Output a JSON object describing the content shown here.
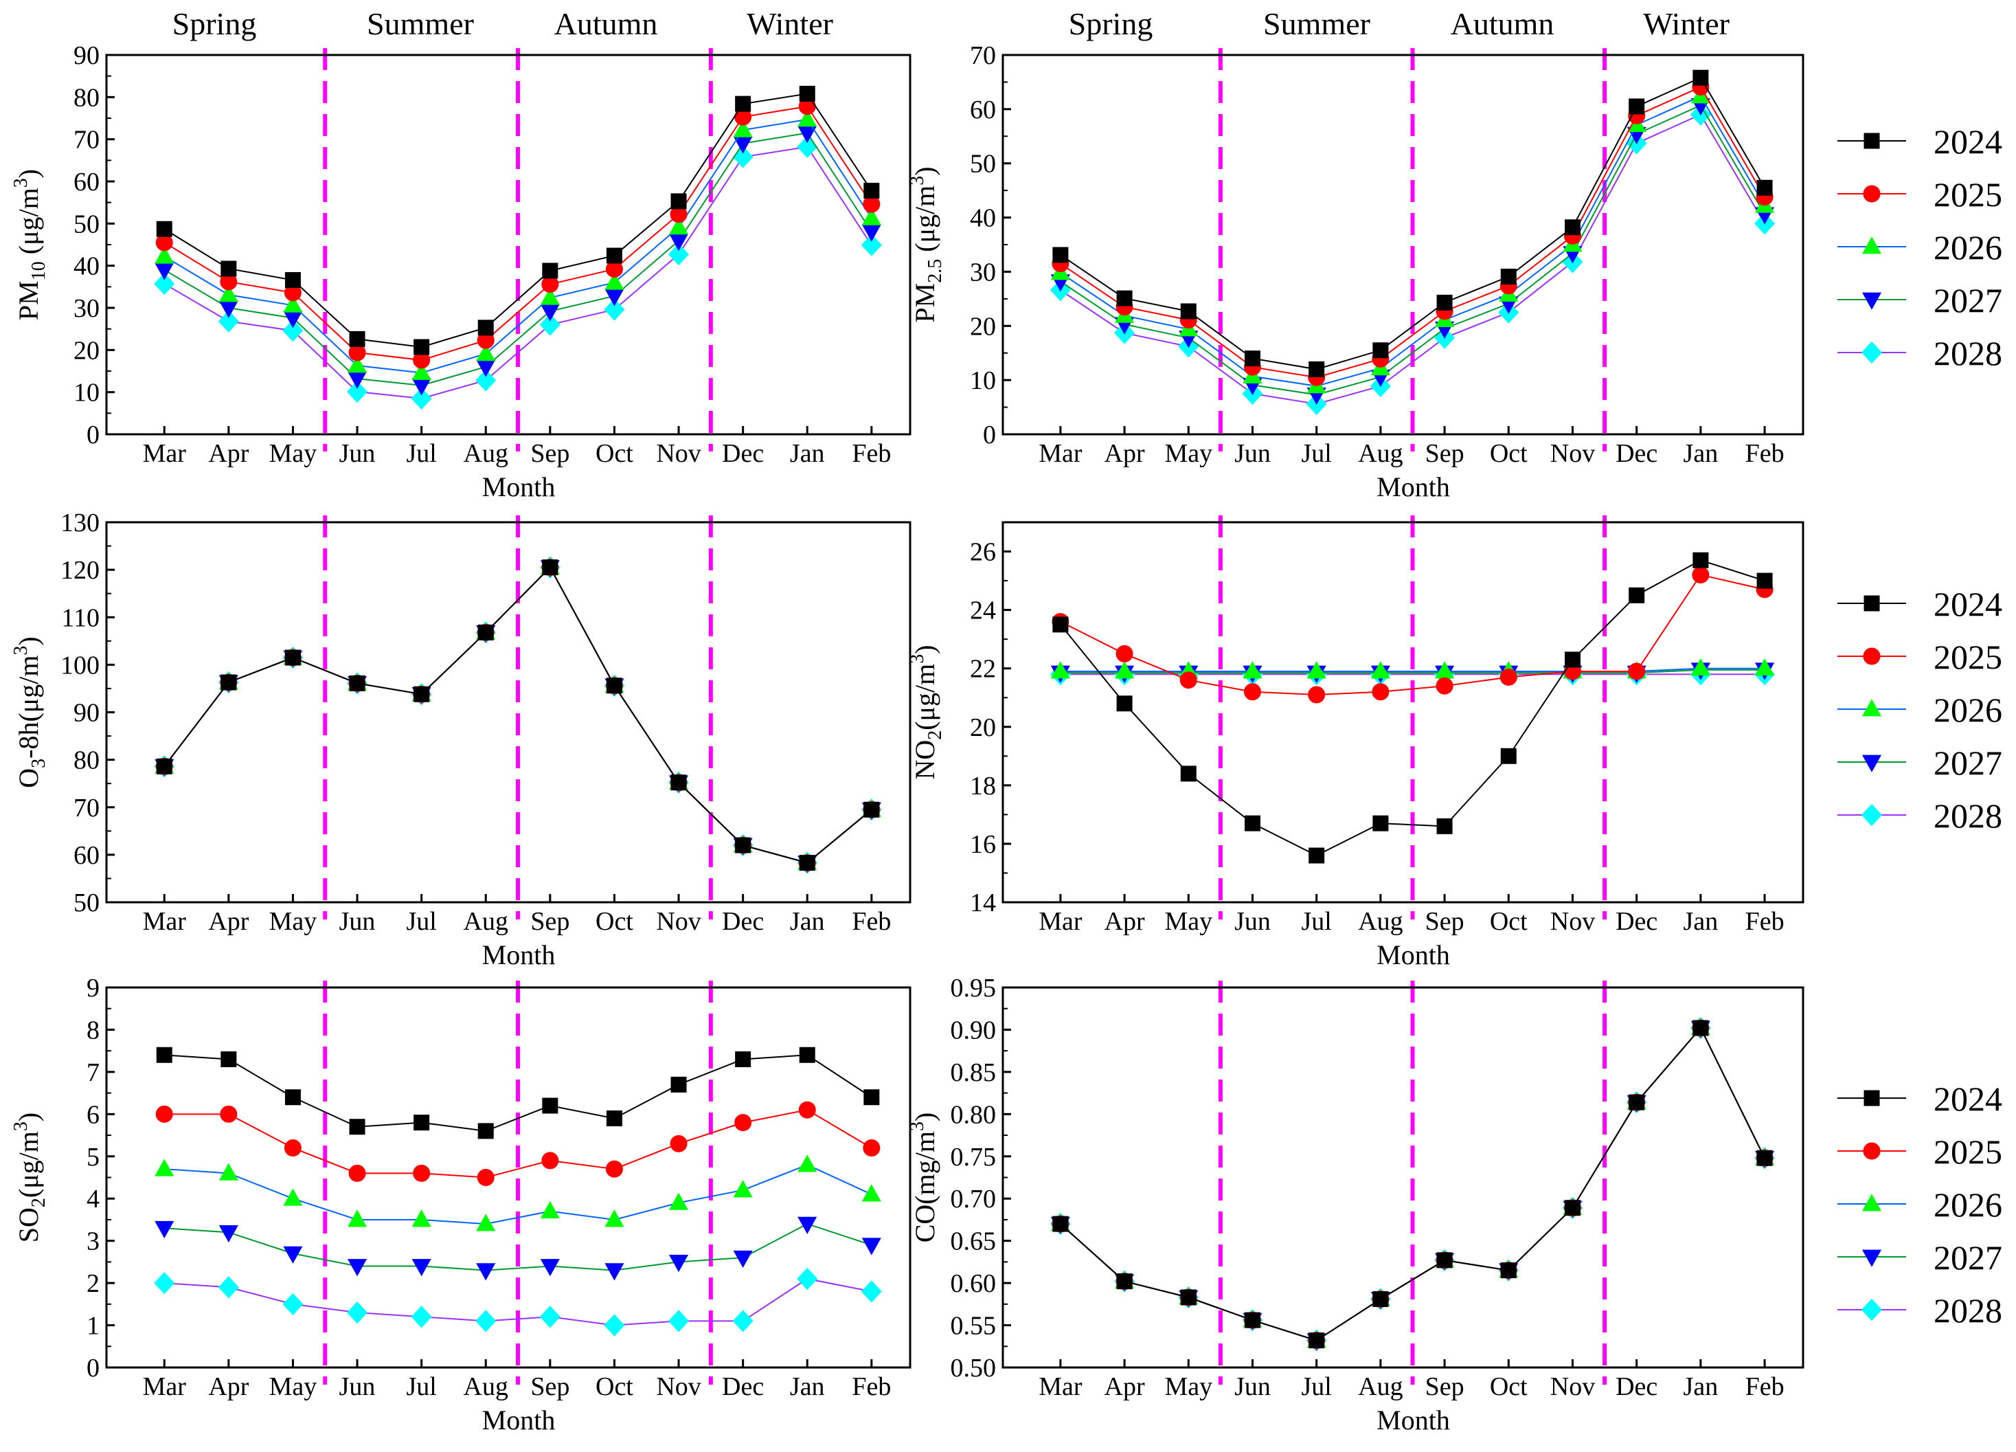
{
  "seasons": [
    "Spring",
    "Summer",
    "Autumn",
    "Winter"
  ],
  "legend": [
    "2024",
    "2025",
    "2026",
    "2027",
    "2028"
  ],
  "series_style": [
    {
      "name": "2024",
      "marker": "square",
      "fill": "#000000",
      "line": "#000000"
    },
    {
      "name": "2025",
      "marker": "circle",
      "fill": "#ff0000",
      "line": "#ff0000"
    },
    {
      "name": "2026",
      "marker": "triangle-up",
      "fill": "#00ff00",
      "line": "#0066ff"
    },
    {
      "name": "2027",
      "marker": "triangle-down",
      "fill": "#0000ff",
      "line": "#009933"
    },
    {
      "name": "2028",
      "marker": "diamond",
      "fill": "#00ffff",
      "line": "#9933ff"
    }
  ],
  "season_divider_color": "#ff00ff",
  "chart_data": [
    {
      "id": "pm10",
      "type": "line",
      "ylabel": "PM10 (μg/m3)",
      "ylabel_parts": [
        "PM",
        "10",
        " (μg/m",
        "3",
        ")"
      ],
      "xlabel": "Month",
      "categories": [
        "Mar",
        "Apr",
        "May",
        "Jun",
        "Jul",
        "Aug",
        "Sep",
        "Oct",
        "Nov",
        "Dec",
        "Jan",
        "Feb"
      ],
      "ylim": [
        0,
        90
      ],
      "yticks": [
        0,
        10,
        20,
        30,
        40,
        50,
        60,
        70,
        80,
        90
      ],
      "ydecimals": 0,
      "season_dividers_after": [
        "May",
        "Aug",
        "Nov"
      ],
      "series": [
        {
          "name": "2024",
          "values": [
            48.7,
            39.3,
            36.6,
            22.6,
            20.7,
            25.3,
            38.8,
            42.4,
            55.3,
            78.4,
            80.8,
            57.8
          ]
        },
        {
          "name": "2025",
          "values": [
            45.5,
            36.2,
            33.6,
            19.4,
            17.6,
            22.3,
            35.6,
            39.2,
            52.2,
            75.3,
            77.8,
            54.6
          ]
        },
        {
          "name": "2026",
          "values": [
            42.2,
            33.1,
            30.6,
            16.3,
            14.6,
            19.1,
            32.4,
            36.0,
            49.1,
            72.2,
            74.7,
            51.3
          ]
        },
        {
          "name": "2027",
          "values": [
            39.0,
            30.0,
            27.6,
            13.2,
            11.6,
            16.0,
            29.2,
            32.8,
            45.9,
            69.0,
            71.5,
            48.1
          ]
        },
        {
          "name": "2028",
          "values": [
            35.7,
            26.8,
            24.6,
            10.1,
            8.5,
            12.8,
            26.0,
            29.6,
            42.7,
            65.8,
            68.2,
            44.9
          ]
        }
      ]
    },
    {
      "id": "pm25",
      "type": "line",
      "ylabel": "PM2.5 (μg/m3)",
      "ylabel_parts": [
        "PM",
        "2.5",
        " (μg/m",
        "3",
        ")"
      ],
      "xlabel": "Month",
      "categories": [
        "Mar",
        "Apr",
        "May",
        "Jun",
        "Jul",
        "Aug",
        "Sep",
        "Oct",
        "Nov",
        "Dec",
        "Jan",
        "Feb"
      ],
      "ylim": [
        0,
        70
      ],
      "yticks": [
        0,
        10,
        20,
        30,
        40,
        50,
        60,
        70
      ],
      "ydecimals": 0,
      "season_dividers_after": [
        "May",
        "Aug",
        "Nov"
      ],
      "series": [
        {
          "name": "2024",
          "values": [
            33.1,
            25.1,
            22.7,
            14.0,
            12.0,
            15.5,
            24.3,
            29.1,
            38.2,
            60.5,
            65.8,
            45.5
          ]
        },
        {
          "name": "2025",
          "values": [
            31.5,
            23.5,
            21.1,
            12.4,
            10.5,
            13.9,
            22.7,
            27.4,
            36.6,
            58.8,
            64.1,
            43.8
          ]
        },
        {
          "name": "2026",
          "values": [
            29.8,
            21.9,
            19.4,
            10.7,
            8.9,
            12.2,
            21.1,
            25.8,
            35.0,
            57.1,
            62.4,
            42.2
          ]
        },
        {
          "name": "2027",
          "values": [
            28.2,
            20.3,
            17.8,
            9.1,
            7.3,
            10.6,
            19.5,
            24.1,
            33.4,
            55.4,
            60.7,
            40.6
          ]
        },
        {
          "name": "2028",
          "values": [
            26.6,
            18.7,
            16.2,
            7.5,
            5.6,
            8.9,
            17.8,
            22.5,
            31.8,
            53.7,
            59.0,
            38.9
          ]
        }
      ]
    },
    {
      "id": "o3",
      "type": "line",
      "ylabel": "O3-8h(μg/m3)",
      "ylabel_parts": [
        "O",
        "3",
        "-8h(μg/m",
        "3",
        ")"
      ],
      "xlabel": "Month",
      "categories": [
        "Mar",
        "Apr",
        "May",
        "Jun",
        "Jul",
        "Aug",
        "Sep",
        "Oct",
        "Nov",
        "Dec",
        "Jan",
        "Feb"
      ],
      "ylim": [
        50,
        130
      ],
      "yticks": [
        50,
        60,
        70,
        80,
        90,
        100,
        110,
        120,
        130
      ],
      "ydecimals": 0,
      "season_dividers_after": [
        "May",
        "Aug",
        "Nov"
      ],
      "series": [
        {
          "name": "2024",
          "values": [
            78.6,
            96.3,
            101.5,
            96.1,
            93.8,
            106.8,
            120.5,
            95.6,
            75.2,
            62.0,
            58.3,
            69.5
          ]
        },
        {
          "name": "2025",
          "values": [
            78.6,
            96.3,
            101.5,
            96.1,
            93.8,
            106.8,
            120.5,
            95.6,
            75.2,
            62.0,
            58.3,
            69.5
          ]
        },
        {
          "name": "2026",
          "values": [
            78.6,
            96.3,
            101.5,
            96.1,
            93.8,
            106.8,
            120.5,
            95.6,
            75.2,
            62.0,
            58.3,
            69.5
          ]
        },
        {
          "name": "2027",
          "values": [
            78.6,
            96.3,
            101.5,
            96.1,
            93.8,
            106.8,
            120.5,
            95.6,
            75.2,
            62.0,
            58.3,
            69.5
          ]
        },
        {
          "name": "2028",
          "values": [
            78.6,
            96.3,
            101.5,
            96.1,
            93.8,
            106.8,
            120.5,
            95.6,
            75.2,
            62.0,
            58.3,
            69.5
          ]
        }
      ]
    },
    {
      "id": "no2",
      "type": "line",
      "ylabel": "NO2(μg/m3)",
      "ylabel_parts": [
        "NO",
        "2",
        "(μg/m",
        "3",
        ")"
      ],
      "xlabel": "Month",
      "categories": [
        "Mar",
        "Apr",
        "May",
        "Jun",
        "Jul",
        "Aug",
        "Sep",
        "Oct",
        "Nov",
        "Dec",
        "Jan",
        "Feb"
      ],
      "ylim": [
        14,
        27
      ],
      "yticks": [
        14,
        16,
        18,
        20,
        22,
        24,
        26
      ],
      "ydecimals": 0,
      "season_dividers_after": [
        "May",
        "Aug",
        "Nov"
      ],
      "series": [
        {
          "name": "2024",
          "values": [
            23.5,
            20.8,
            18.4,
            16.7,
            15.6,
            16.7,
            16.6,
            19.0,
            22.3,
            24.5,
            25.7,
            25.0
          ]
        },
        {
          "name": "2025",
          "values": [
            23.6,
            22.5,
            21.6,
            21.2,
            21.1,
            21.2,
            21.4,
            21.7,
            21.9,
            21.9,
            25.2,
            24.7
          ]
        },
        {
          "name": "2026",
          "values": [
            21.9,
            21.9,
            21.9,
            21.9,
            21.9,
            21.9,
            21.9,
            21.9,
            21.9,
            21.9,
            22.0,
            22.0
          ]
        },
        {
          "name": "2027",
          "values": [
            21.85,
            21.85,
            21.85,
            21.85,
            21.85,
            21.85,
            21.85,
            21.85,
            21.85,
            21.85,
            21.95,
            21.95
          ]
        },
        {
          "name": "2028",
          "values": [
            21.8,
            21.8,
            21.8,
            21.8,
            21.8,
            21.8,
            21.8,
            21.8,
            21.8,
            21.8,
            21.8,
            21.8
          ]
        }
      ]
    },
    {
      "id": "so2",
      "type": "line",
      "ylabel": "SO2(μg/m3)",
      "ylabel_parts": [
        "SO",
        "2",
        "(μg/m",
        "3",
        ")"
      ],
      "xlabel": "Month",
      "categories": [
        "Mar",
        "Apr",
        "May",
        "Jun",
        "Jul",
        "Aug",
        "Sep",
        "Oct",
        "Nov",
        "Dec",
        "Jan",
        "Feb"
      ],
      "ylim": [
        0,
        9
      ],
      "yticks": [
        0,
        1,
        2,
        3,
        4,
        5,
        6,
        7,
        8,
        9
      ],
      "ydecimals": 0,
      "season_dividers_after": [
        "May",
        "Aug",
        "Nov"
      ],
      "series": [
        {
          "name": "2024",
          "values": [
            7.4,
            7.3,
            6.4,
            5.7,
            5.8,
            5.6,
            6.2,
            5.9,
            6.7,
            7.3,
            7.4,
            6.4
          ]
        },
        {
          "name": "2025",
          "values": [
            6.0,
            6.0,
            5.2,
            4.6,
            4.6,
            4.5,
            4.9,
            4.7,
            5.3,
            5.8,
            6.1,
            5.2
          ]
        },
        {
          "name": "2026",
          "values": [
            4.7,
            4.6,
            4.0,
            3.5,
            3.5,
            3.4,
            3.7,
            3.5,
            3.9,
            4.2,
            4.8,
            4.1
          ]
        },
        {
          "name": "2027",
          "values": [
            3.3,
            3.2,
            2.7,
            2.4,
            2.4,
            2.3,
            2.4,
            2.3,
            2.5,
            2.6,
            3.4,
            2.9
          ]
        },
        {
          "name": "2028",
          "values": [
            2.0,
            1.9,
            1.5,
            1.3,
            1.2,
            1.1,
            1.2,
            1.0,
            1.1,
            1.1,
            2.1,
            1.8
          ]
        }
      ]
    },
    {
      "id": "co",
      "type": "line",
      "ylabel": "CO(mg/m3)",
      "ylabel_parts": [
        "CO(mg/m",
        "",
        "",
        "3",
        ")"
      ],
      "xlabel": "Month",
      "categories": [
        "Mar",
        "Apr",
        "May",
        "Jun",
        "Jul",
        "Aug",
        "Sep",
        "Oct",
        "Nov",
        "Dec",
        "Jan",
        "Feb"
      ],
      "ylim": [
        0.5,
        0.95
      ],
      "yticks": [
        0.5,
        0.55,
        0.6,
        0.65,
        0.7,
        0.75,
        0.8,
        0.85,
        0.9,
        0.95
      ],
      "ydecimals": 2,
      "season_dividers_after": [
        "May",
        "Aug",
        "Nov"
      ],
      "series": [
        {
          "name": "2024",
          "values": [
            0.67,
            0.602,
            0.583,
            0.556,
            0.532,
            0.581,
            0.627,
            0.615,
            0.689,
            0.814,
            0.902,
            0.748
          ]
        },
        {
          "name": "2025",
          "values": [
            0.67,
            0.602,
            0.583,
            0.556,
            0.532,
            0.581,
            0.627,
            0.615,
            0.689,
            0.814,
            0.902,
            0.748
          ]
        },
        {
          "name": "2026",
          "values": [
            0.67,
            0.602,
            0.583,
            0.556,
            0.532,
            0.581,
            0.627,
            0.615,
            0.689,
            0.814,
            0.902,
            0.748
          ]
        },
        {
          "name": "2027",
          "values": [
            0.67,
            0.602,
            0.583,
            0.556,
            0.532,
            0.581,
            0.627,
            0.615,
            0.689,
            0.814,
            0.902,
            0.748
          ]
        },
        {
          "name": "2028",
          "values": [
            0.67,
            0.602,
            0.583,
            0.556,
            0.532,
            0.581,
            0.627,
            0.615,
            0.689,
            0.814,
            0.902,
            0.748
          ]
        }
      ]
    }
  ]
}
